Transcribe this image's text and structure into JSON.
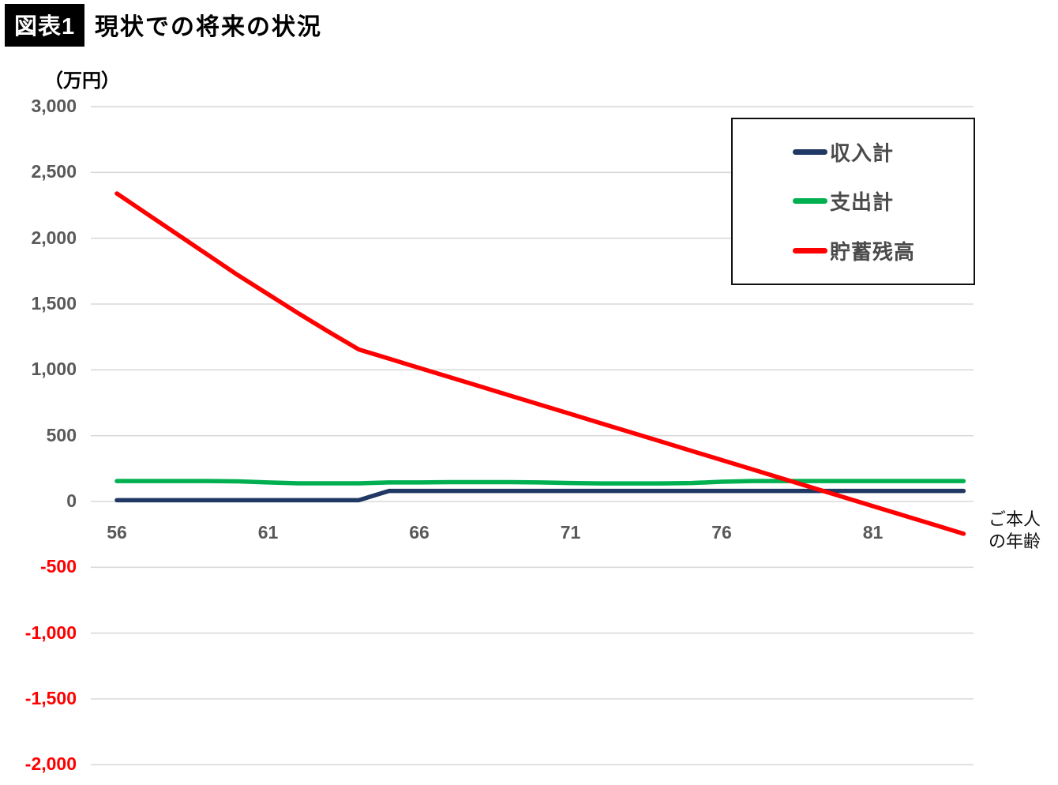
{
  "title": {
    "badge": "図表1",
    "text": "現状での将来の状況"
  },
  "y_unit_label": "（万円）",
  "x_axis_label_lines": [
    "ご本人",
    "の年齢"
  ],
  "legend": {
    "items": [
      {
        "label": "収入計",
        "color": "#1f3864"
      },
      {
        "label": "支出計",
        "color": "#00b050"
      },
      {
        "label": "貯蓄残高",
        "color": "#ff0000"
      }
    ]
  },
  "colors": {
    "income_line": "#1f3864",
    "expenditure_line": "#00b050",
    "savings_line": "#ff0000",
    "gridline": "#d9d9d9",
    "tick_text": "#595959",
    "negative_tick_text": "#ff0000",
    "title_badge_bg": "#000000",
    "title_badge_text": "#ffffff"
  },
  "chart_data": {
    "type": "line",
    "title": "現状での将来の状況",
    "xlabel": "ご本人の年齢",
    "ylabel": "（万円）",
    "ylim": [
      -2000,
      3000
    ],
    "grid": true,
    "legend_position": "top-right",
    "y_ticks": [
      3000,
      2500,
      2000,
      1500,
      1000,
      500,
      0,
      -500,
      -1000,
      -1500,
      -2000
    ],
    "x_ticks": [
      56,
      61,
      66,
      71,
      76,
      81
    ],
    "x": [
      56,
      57,
      58,
      59,
      60,
      61,
      62,
      63,
      64,
      65,
      66,
      67,
      68,
      69,
      70,
      71,
      72,
      73,
      74,
      75,
      76,
      77,
      78,
      79,
      80,
      81,
      82,
      83,
      84
    ],
    "series": [
      {
        "name": "収入計",
        "color": "#1f3864",
        "values": [
          10,
          10,
          10,
          10,
          10,
          10,
          10,
          10,
          10,
          80,
          80,
          80,
          80,
          80,
          80,
          80,
          80,
          80,
          80,
          80,
          80,
          80,
          80,
          80,
          80,
          80,
          80,
          80,
          80
        ]
      },
      {
        "name": "支出計",
        "color": "#00b050",
        "values": [
          155,
          155,
          155,
          155,
          153,
          145,
          138,
          138,
          138,
          145,
          145,
          147,
          147,
          147,
          145,
          140,
          137,
          137,
          137,
          140,
          150,
          155,
          155,
          155,
          155,
          155,
          155,
          155,
          155
        ]
      },
      {
        "name": "貯蓄残高",
        "color": "#ff0000",
        "values": [
          2340,
          2185,
          2030,
          1875,
          1720,
          1575,
          1430,
          1290,
          1155,
          1085,
          1015,
          945,
          875,
          805,
          735,
          665,
          595,
          525,
          455,
          385,
          315,
          245,
          175,
          105,
          35,
          -35,
          -105,
          -175,
          -245
        ]
      }
    ]
  }
}
